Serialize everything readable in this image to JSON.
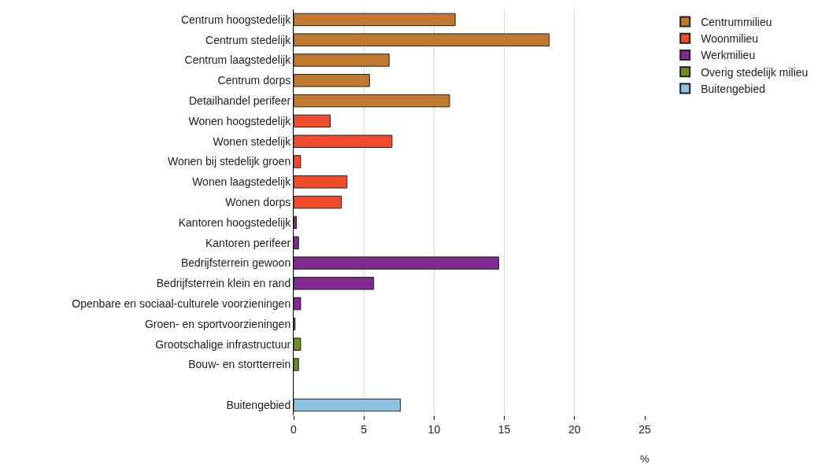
{
  "chart_data": {
    "type": "bar",
    "orientation": "horizontal",
    "xlabel": "%",
    "categories": [
      "Centrum hoogstedelijk",
      "Centrum stedelijk",
      "Centrum laagstedelijk",
      "Centrum dorps",
      "Detailhandel perifeer",
      "Wonen hoogstedelijk",
      "Wonen stedelijk",
      "Wonen bij stedelijk groen",
      "Wonen laagstedelijk",
      "Wonen dorps",
      "Kantoren hoogstedelijk",
      "Kantoren perifeer",
      "Bedrijfsterrein gewoon",
      "Bedrijfsterrein klein en rand",
      "Openbare en sociaal-culturele voorzieningen",
      "Groen- en sportvoorzieningen",
      "Grootschalige infrastructuur",
      "Bouw- en stortterrein",
      null,
      "Buitengebied"
    ],
    "series": [
      {
        "name": "Centrummilieu",
        "color": "#c07a30",
        "values": [
          11.5,
          18.2,
          6.8,
          5.4,
          11.1,
          null,
          null,
          null,
          null,
          null,
          null,
          null,
          null,
          null,
          null,
          null,
          null,
          null,
          null,
          null
        ]
      },
      {
        "name": "Woonmilieu",
        "color": "#f04b2d",
        "values": [
          null,
          null,
          null,
          null,
          null,
          2.6,
          7.0,
          0.5,
          3.8,
          3.4,
          null,
          null,
          null,
          null,
          null,
          null,
          null,
          null,
          null,
          null
        ]
      },
      {
        "name": "Werkmilieu",
        "color": "#7e2a8e",
        "values": [
          null,
          null,
          null,
          null,
          null,
          null,
          null,
          null,
          null,
          null,
          0.2,
          0.35,
          14.6,
          5.7,
          0.5,
          0.1,
          null,
          null,
          null,
          null
        ]
      },
      {
        "name": "Overig stedelijk milieu",
        "color": "#6b8e23",
        "values": [
          null,
          null,
          null,
          null,
          null,
          null,
          null,
          null,
          null,
          null,
          null,
          null,
          null,
          null,
          null,
          null,
          0.5,
          0.35,
          null,
          null
        ]
      },
      {
        "name": "Buitengebied",
        "color": "#8ec2e2",
        "values": [
          null,
          null,
          null,
          null,
          null,
          null,
          null,
          null,
          null,
          null,
          null,
          null,
          null,
          null,
          null,
          null,
          null,
          null,
          null,
          7.6
        ]
      }
    ],
    "xlim": [
      0,
      25
    ],
    "xticks": [
      0,
      5,
      10,
      15,
      20,
      25
    ],
    "grid": "x",
    "legend": "top right"
  }
}
